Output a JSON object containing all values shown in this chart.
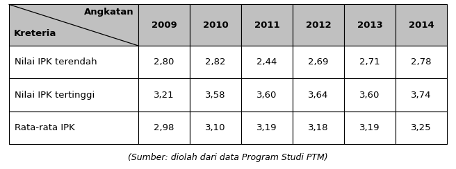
{
  "header_top": "Angkatan",
  "header_left": "Kreteria",
  "years": [
    "2009",
    "2010",
    "2011",
    "2012",
    "2013",
    "2014"
  ],
  "rows": [
    {
      "label": "Nilai IPK terendah",
      "values": [
        "2,80",
        "2,82",
        "2,44",
        "2,69",
        "2,71",
        "2,78"
      ]
    },
    {
      "label": "Nilai IPK tertinggi",
      "values": [
        "3,21",
        "3,58",
        "3,60",
        "3,64",
        "3,60",
        "3,74"
      ]
    },
    {
      "label": "Rata-rata IPK",
      "values": [
        "2,98",
        "3,10",
        "3,19",
        "3,18",
        "3,19",
        "3,25"
      ]
    }
  ],
  "caption": "(Sumber: diolah dari data Program Studi PTM)",
  "header_bg": "#C0C0C0",
  "cell_bg": "#FFFFFF",
  "border_color": "#000000",
  "header_fontsize": 9.5,
  "cell_fontsize": 9.5,
  "caption_fontsize": 9,
  "fig_width": 6.56,
  "fig_height": 2.44
}
